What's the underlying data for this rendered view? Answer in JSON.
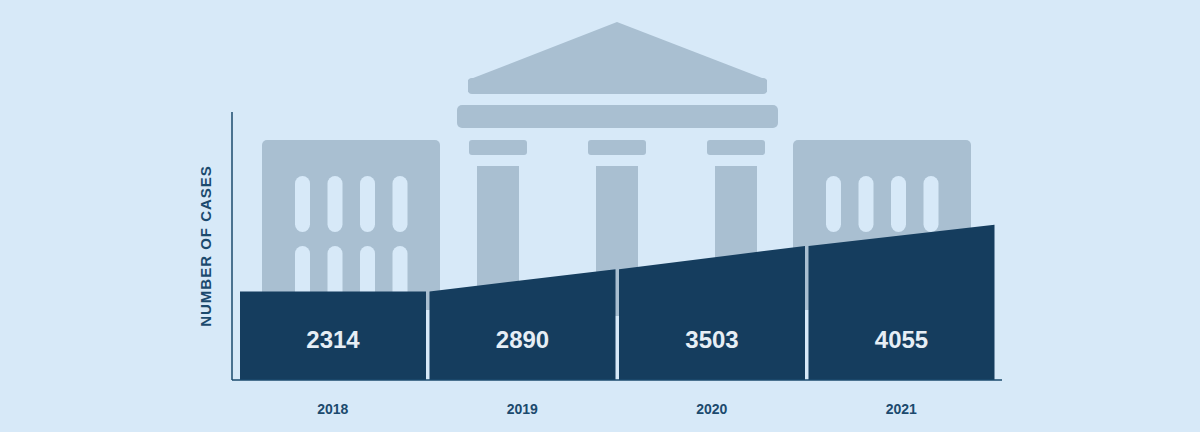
{
  "chart_data": {
    "type": "bar",
    "categories": [
      "2018",
      "2019",
      "2020",
      "2021"
    ],
    "values": [
      2314,
      2890,
      3503,
      4055
    ],
    "color": "#153d5e",
    "ylabel": "NUMBER OF CASES",
    "ylim": [
      0,
      7000
    ],
    "yticks": [],
    "data_labels": true,
    "tick_labels": "x",
    "grid": false
  }
}
